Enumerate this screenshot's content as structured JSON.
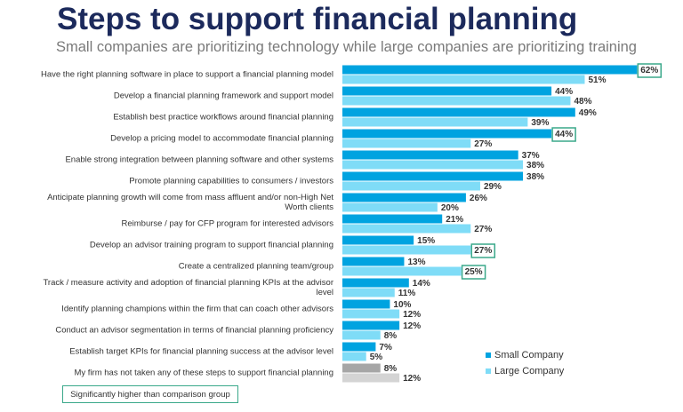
{
  "chart_data": {
    "type": "hbar",
    "title": "Steps to support financial planning",
    "subtitle": "Small companies are prioritizing technology while large companies are prioritizing training",
    "categories": [
      "Have the right planning software in place to support a financial planning model",
      "Develop a financial planning framework and support model",
      "Establish best practice workflows around financial planning",
      "Develop a pricing model to accommodate financial planning",
      "Enable strong integration between planning software and other systems",
      "Promote planning capabilities to consumers / investors",
      "Anticipate planning growth will come from mass affluent and/or non-High Net Worth clients",
      "Reimburse / pay for CFP program for interested advisors",
      "Develop an advisor training program to support financial planning",
      "Create a centralized planning team/group",
      "Track / measure activity and adoption of financial planning KPIs at the advisor level",
      "Identify planning champions within the firm that can coach other advisors",
      "Conduct an advisor segmentation in terms of financial planning proficiency",
      "Establish target KPIs for financial planning success at the advisor level",
      "My firm has not taken any of these steps to support financial planning"
    ],
    "series": [
      {
        "name": "Small Company",
        "color": "#00a3e0",
        "override_color": "#a6a6a6",
        "values": [
          62,
          44,
          49,
          44,
          37,
          38,
          26,
          21,
          15,
          13,
          14,
          10,
          12,
          7,
          8
        ],
        "value_labels": [
          "62%",
          "44%",
          "49%",
          "44%",
          "37%",
          "38%",
          "26%",
          "21%",
          "15%",
          "13%",
          "14%",
          "10%",
          "12%",
          "7%",
          "8%"
        ],
        "highlight": [
          0,
          3
        ]
      },
      {
        "name": "Large Company",
        "color": "#7fdcf7",
        "override_color": "#d4d4d4",
        "values": [
          51,
          48,
          39,
          27,
          38,
          29,
          20,
          27,
          27,
          25,
          11,
          12,
          8,
          5,
          12
        ],
        "value_labels": [
          "51%",
          "48%",
          "39%",
          "27%",
          "38%",
          "29%",
          "20%",
          "27%",
          "27%",
          "25%",
          "11%",
          "12%",
          "8%",
          "5%",
          "12%"
        ],
        "highlight": [
          8,
          9
        ]
      }
    ],
    "override_index": 14,
    "highlight_color": "#3aa88a",
    "highlight_note": "Significantly higher than comparison group",
    "xlim": [
      0,
      70
    ]
  }
}
